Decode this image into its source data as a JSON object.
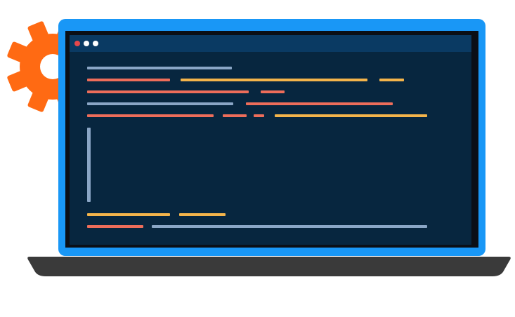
{
  "colors": {
    "gear": "#ff6a13",
    "lid": "#1997f6",
    "base": "#3a3a3a",
    "titlebar": "#0a3a63",
    "screen": "#07263f",
    "blue_line": "#8aa6c6",
    "orange_line": "#f3b44b",
    "red_line": "#ed6d5a",
    "dot_close": "#e7474b",
    "dot_other": "#ffffff"
  },
  "icons": {
    "gear": "gear-icon",
    "window_controls": [
      "close-dot",
      "minimize-dot",
      "maximize-dot"
    ]
  }
}
